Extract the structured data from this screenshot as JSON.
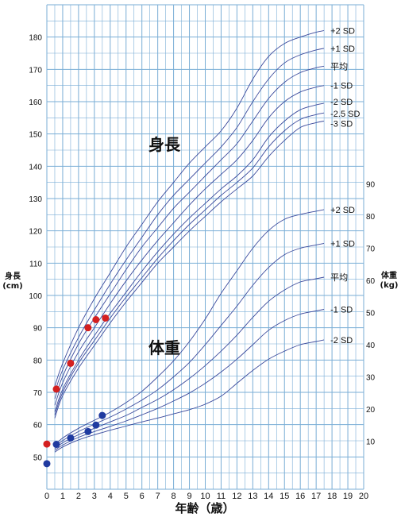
{
  "chart_data": {
    "type": "line",
    "title": "",
    "x": {
      "label": "年齢（歳）",
      "range": [
        0,
        20
      ],
      "ticks": [
        0,
        1,
        2,
        3,
        4,
        5,
        6,
        7,
        8,
        9,
        10,
        11,
        12,
        13,
        14,
        15,
        16,
        17,
        18,
        19,
        20
      ]
    },
    "y_left": {
      "label_lines": [
        "身長",
        "(cm)"
      ],
      "range": [
        40,
        190
      ],
      "ticks": [
        50,
        60,
        70,
        80,
        90,
        100,
        110,
        120,
        130,
        140,
        150,
        160,
        170,
        180
      ]
    },
    "y_right": {
      "label_lines": [
        "体重",
        "(kg)"
      ],
      "range": [
        0,
        90
      ],
      "ticks": [
        10,
        20,
        30,
        40,
        50,
        60,
        70,
        80,
        90
      ]
    },
    "grid": true,
    "height": {
      "label": "身長",
      "series": [
        {
          "name": "+2 SD",
          "points": [
            [
              0.5,
              72
            ],
            [
              1,
              79
            ],
            [
              2,
              90
            ],
            [
              3,
              99
            ],
            [
              4,
              107
            ],
            [
              5,
              115
            ],
            [
              6,
              122
            ],
            [
              7,
              129
            ],
            [
              8,
              135
            ],
            [
              9,
              141
            ],
            [
              10,
              146
            ],
            [
              11,
              151
            ],
            [
              12,
              158
            ],
            [
              13,
              167
            ],
            [
              14,
              174
            ],
            [
              15,
              178
            ],
            [
              16,
              180
            ],
            [
              17,
              181.5
            ],
            [
              17.5,
              182
            ]
          ]
        },
        {
          "name": "+1 SD",
          "points": [
            [
              0.5,
              70
            ],
            [
              1,
              77
            ],
            [
              2,
              87
            ],
            [
              3,
              95.5
            ],
            [
              4,
              103.5
            ],
            [
              5,
              111
            ],
            [
              6,
              118
            ],
            [
              7,
              125
            ],
            [
              8,
              131
            ],
            [
              9,
              136
            ],
            [
              10,
              141
            ],
            [
              11,
              146
            ],
            [
              12,
              152
            ],
            [
              13,
              160
            ],
            [
              14,
              167
            ],
            [
              15,
              172
            ],
            [
              16,
              174.5
            ],
            [
              17,
              176
            ],
            [
              17.5,
              176.5
            ]
          ]
        },
        {
          "name": "平均",
          "points": [
            [
              0.5,
              68
            ],
            [
              1,
              75
            ],
            [
              2,
              85
            ],
            [
              3,
              93
            ],
            [
              4,
              100.5
            ],
            [
              5,
              108
            ],
            [
              6,
              115
            ],
            [
              7,
              121
            ],
            [
              8,
              127
            ],
            [
              9,
              132
            ],
            [
              10,
              137
            ],
            [
              11,
              142
            ],
            [
              12,
              147
            ],
            [
              13,
              154
            ],
            [
              14,
              161
            ],
            [
              15,
              166
            ],
            [
              16,
              169
            ],
            [
              17,
              170.5
            ],
            [
              17.5,
              171
            ]
          ]
        },
        {
          "name": "-1 SD",
          "points": [
            [
              0.5,
              66
            ],
            [
              1,
              73
            ],
            [
              2,
              82.5
            ],
            [
              3,
              90
            ],
            [
              4,
              97.5
            ],
            [
              5,
              104.5
            ],
            [
              6,
              111
            ],
            [
              7,
              117
            ],
            [
              8,
              122.5
            ],
            [
              9,
              128
            ],
            [
              10,
              133
            ],
            [
              11,
              137.5
            ],
            [
              12,
              142
            ],
            [
              13,
              148
            ],
            [
              14,
              155
            ],
            [
              15,
              160
            ],
            [
              16,
              163
            ],
            [
              17,
              164.5
            ],
            [
              17.5,
              165
            ]
          ]
        },
        {
          "name": "-2 SD",
          "points": [
            [
              0.5,
              64
            ],
            [
              1,
              71
            ],
            [
              2,
              80
            ],
            [
              3,
              87.5
            ],
            [
              4,
              94.5
            ],
            [
              5,
              101
            ],
            [
              6,
              107.5
            ],
            [
              7,
              113.5
            ],
            [
              8,
              119
            ],
            [
              9,
              124
            ],
            [
              10,
              128.5
            ],
            [
              11,
              133
            ],
            [
              12,
              137
            ],
            [
              13,
              142
            ],
            [
              14,
              149
            ],
            [
              15,
              154
            ],
            [
              16,
              157.5
            ],
            [
              17,
              159
            ],
            [
              17.5,
              159.5
            ]
          ]
        },
        {
          "name": "-2.5 SD",
          "points": [
            [
              0.5,
              63
            ],
            [
              1,
              70
            ],
            [
              2,
              79
            ],
            [
              3,
              86
            ],
            [
              4,
              93
            ],
            [
              5,
              99.5
            ],
            [
              6,
              105.5
            ],
            [
              7,
              111.5
            ],
            [
              8,
              117
            ],
            [
              9,
              122
            ],
            [
              10,
              126.5
            ],
            [
              11,
              131
            ],
            [
              12,
              135
            ],
            [
              13,
              139.5
            ],
            [
              14,
              146
            ],
            [
              15,
              151
            ],
            [
              16,
              154.5
            ],
            [
              17,
              156
            ],
            [
              17.5,
              156.5
            ]
          ]
        },
        {
          "name": "-3 SD",
          "points": [
            [
              0.5,
              62
            ],
            [
              1,
              69
            ],
            [
              2,
              77.5
            ],
            [
              3,
              84.5
            ],
            [
              4,
              91.5
            ],
            [
              5,
              98
            ],
            [
              6,
              104
            ],
            [
              7,
              110
            ],
            [
              8,
              115
            ],
            [
              9,
              120
            ],
            [
              10,
              124.5
            ],
            [
              11,
              129
            ],
            [
              12,
              133
            ],
            [
              13,
              137
            ],
            [
              14,
              143
            ],
            [
              15,
              148
            ],
            [
              16,
              152
            ],
            [
              17,
              153.5
            ],
            [
              17.5,
              154
            ]
          ]
        }
      ],
      "measurements": [
        [
          0,
          54
        ],
        [
          0.6,
          71
        ],
        [
          1.5,
          79
        ],
        [
          2.6,
          90
        ],
        [
          3.1,
          92.5
        ],
        [
          3.7,
          93
        ]
      ]
    },
    "weight": {
      "label": "体重",
      "series": [
        {
          "name": "+2 SD",
          "points": [
            [
              0.5,
              8.8
            ],
            [
              1,
              11
            ],
            [
              2,
              14
            ],
            [
              3,
              16.5
            ],
            [
              4,
              19
            ],
            [
              5,
              22
            ],
            [
              6,
              25.5
            ],
            [
              7,
              30
            ],
            [
              8,
              35
            ],
            [
              9,
              41
            ],
            [
              10,
              48
            ],
            [
              11,
              56
            ],
            [
              12,
              63
            ],
            [
              13,
              70
            ],
            [
              14,
              75.5
            ],
            [
              15,
              79
            ],
            [
              16,
              80.5
            ],
            [
              17,
              81.5
            ],
            [
              17.5,
              82
            ]
          ]
        },
        {
          "name": "+1 SD",
          "points": [
            [
              0.5,
              8.2
            ],
            [
              1,
              10.2
            ],
            [
              2,
              13
            ],
            [
              3,
              15.3
            ],
            [
              4,
              17.5
            ],
            [
              5,
              20
            ],
            [
              6,
              22.8
            ],
            [
              7,
              26
            ],
            [
              8,
              30
            ],
            [
              9,
              34.5
            ],
            [
              10,
              40
            ],
            [
              11,
              46
            ],
            [
              12,
              52
            ],
            [
              13,
              58.5
            ],
            [
              14,
              64
            ],
            [
              15,
              68
            ],
            [
              16,
              70
            ],
            [
              17,
              71
            ],
            [
              17.5,
              71.5
            ]
          ]
        },
        {
          "name": "平均",
          "points": [
            [
              0.5,
              7.6
            ],
            [
              1,
              9.5
            ],
            [
              2,
              12
            ],
            [
              3,
              14
            ],
            [
              4,
              16
            ],
            [
              5,
              18
            ],
            [
              6,
              20.5
            ],
            [
              7,
              23
            ],
            [
              8,
              26
            ],
            [
              9,
              29.5
            ],
            [
              10,
              33.5
            ],
            [
              11,
              38
            ],
            [
              12,
              43
            ],
            [
              13,
              48.5
            ],
            [
              14,
              53.5
            ],
            [
              15,
              57
            ],
            [
              16,
              59.5
            ],
            [
              17,
              60.5
            ],
            [
              17.5,
              61
            ]
          ]
        },
        {
          "name": "-1 SD",
          "points": [
            [
              0.5,
              7.1
            ],
            [
              1,
              8.8
            ],
            [
              2,
              11.2
            ],
            [
              3,
              13
            ],
            [
              4,
              14.6
            ],
            [
              5,
              16.3
            ],
            [
              6,
              18.2
            ],
            [
              7,
              20.2
            ],
            [
              8,
              22.5
            ],
            [
              9,
              25
            ],
            [
              10,
              28
            ],
            [
              11,
              31.5
            ],
            [
              12,
              35.5
            ],
            [
              13,
              40
            ],
            [
              14,
              44.5
            ],
            [
              15,
              47.5
            ],
            [
              16,
              49.5
            ],
            [
              17,
              50.5
            ],
            [
              17.5,
              51
            ]
          ]
        },
        {
          "name": "-2 SD",
          "points": [
            [
              0.5,
              6.6
            ],
            [
              1,
              8.2
            ],
            [
              2,
              10.4
            ],
            [
              3,
              12
            ],
            [
              4,
              13.4
            ],
            [
              5,
              14.7
            ],
            [
              6,
              16
            ],
            [
              7,
              17.2
            ],
            [
              8,
              18.5
            ],
            [
              9,
              19.8
            ],
            [
              10,
              21.5
            ],
            [
              11,
              24
            ],
            [
              12,
              28
            ],
            [
              13,
              32
            ],
            [
              14,
              35.5
            ],
            [
              15,
              38
            ],
            [
              16,
              40
            ],
            [
              17,
              41
            ],
            [
              17.5,
              41.5
            ]
          ]
        }
      ],
      "measurements": [
        [
          0,
          3
        ],
        [
          0.6,
          9
        ],
        [
          1.5,
          11
        ],
        [
          2.6,
          13
        ],
        [
          3.1,
          15
        ],
        [
          3.5,
          18
        ]
      ]
    },
    "colors": {
      "grid": "#7aaed6",
      "curve": "#3b4a9c",
      "height_marker": "#d42020",
      "weight_marker": "#1f3aa0"
    }
  }
}
